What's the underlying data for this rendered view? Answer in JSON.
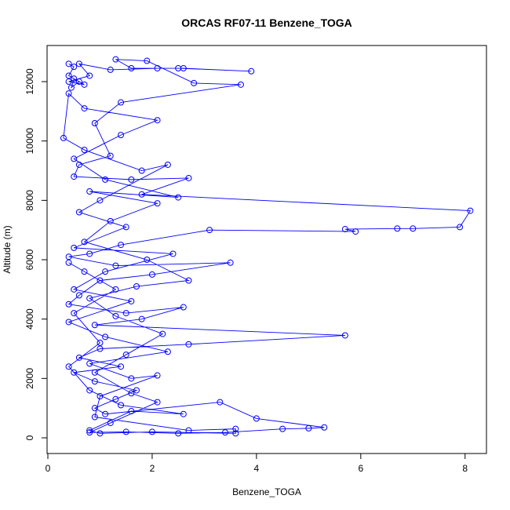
{
  "chart_data": {
    "type": "line",
    "title": "ORCAS RF07-11 Benzene_TOGA",
    "x_label": "Benzene_TOGA",
    "y_label": "Altitude (m)",
    "color": "#0000ff",
    "marker": "open-circle",
    "xlim": [
      -0.015,
      8.41
    ],
    "ylim": [
      -529,
      13217
    ],
    "xticks": [
      0,
      2,
      4,
      6,
      8
    ],
    "yticks": [
      0,
      2000,
      4000,
      6000,
      8000,
      10000,
      12000
    ],
    "x": [
      0.4,
      0.5,
      0.4,
      0.6,
      0.45,
      0.5,
      0.7,
      0.4,
      0.8,
      0.6,
      1.2,
      2.1,
      2.5,
      3.9,
      2.6,
      1.6,
      1.3,
      1.9,
      2.8,
      3.7,
      1.4,
      0.9,
      1.2,
      0.6,
      0.5,
      1.6,
      2.7,
      1.8,
      8.1,
      7.9,
      7.0,
      6.7,
      5.7,
      5.9,
      3.1,
      1.4,
      0.8,
      0.4,
      1.3,
      3.5,
      2.0,
      1.0,
      0.6,
      0.4,
      1.5,
      2.6,
      1.8,
      0.9,
      5.7,
      2.7,
      1.0,
      0.6,
      1.4,
      0.5,
      0.9,
      1.7,
      1.3,
      0.9,
      1.1,
      3.3,
      4.0,
      5.3,
      5.0,
      4.5,
      3.4,
      2.5,
      1.5,
      0.8,
      1.2,
      2.1,
      1.6,
      0.9,
      1.5,
      2.2,
      1.3,
      0.8,
      1.7,
      2.7,
      1.9,
      0.7,
      1.2,
      2.1,
      0.8,
      2.5,
      1.1,
      0.5,
      1.4,
      2.1,
      0.7,
      0.4,
      0.3,
      0.7,
      1.8,
      2.3,
      1.0,
      0.6,
      1.5,
      0.5,
      2.4,
      1.1,
      0.5,
      1.6,
      0.4,
      1.1,
      2.3,
      0.8,
      1.6,
      2.1,
      1.0,
      0.9,
      2.7,
      3.6,
      3.6,
      2.0,
      1.0,
      0.8,
      1.6,
      2.6,
      1.4,
      0.8,
      0.4,
      1.0,
      0.5,
      1.3,
      0.7,
      0.4
    ],
    "values": [
      12600,
      12500,
      12200,
      12000,
      11800,
      12100,
      11900,
      12000,
      12200,
      12600,
      12400,
      12450,
      12450,
      12350,
      12450,
      12450,
      12750,
      12700,
      11950,
      11900,
      11300,
      10600,
      9500,
      9200,
      8800,
      8700,
      8750,
      8200,
      7650,
      7100,
      7050,
      7050,
      7030,
      6950,
      7000,
      6500,
      6200,
      6100,
      5800,
      5900,
      5500,
      5300,
      4800,
      4500,
      4200,
      4400,
      4000,
      3800,
      3450,
      3150,
      3000,
      2700,
      2400,
      2200,
      1900,
      1600,
      1300,
      1000,
      800,
      1200,
      650,
      350,
      320,
      300,
      180,
      150,
      200,
      180,
      500,
      1200,
      1500,
      2200,
      2800,
      3500,
      4100,
      4700,
      5100,
      5300,
      6000,
      6600,
      7300,
      7900,
      8300,
      8100,
      8700,
      9400,
      10200,
      10700,
      11100,
      11600,
      10100,
      9700,
      9000,
      9200,
      8000,
      7600,
      7100,
      6400,
      6200,
      5600,
      5000,
      4600,
      3900,
      3400,
      2900,
      2500,
      2000,
      2100,
      1400,
      700,
      250,
      300,
      150,
      200,
      150,
      250,
      900,
      800,
      1100,
      1600,
      2400,
      3200,
      4200,
      5000,
      5600,
      5900
    ]
  }
}
